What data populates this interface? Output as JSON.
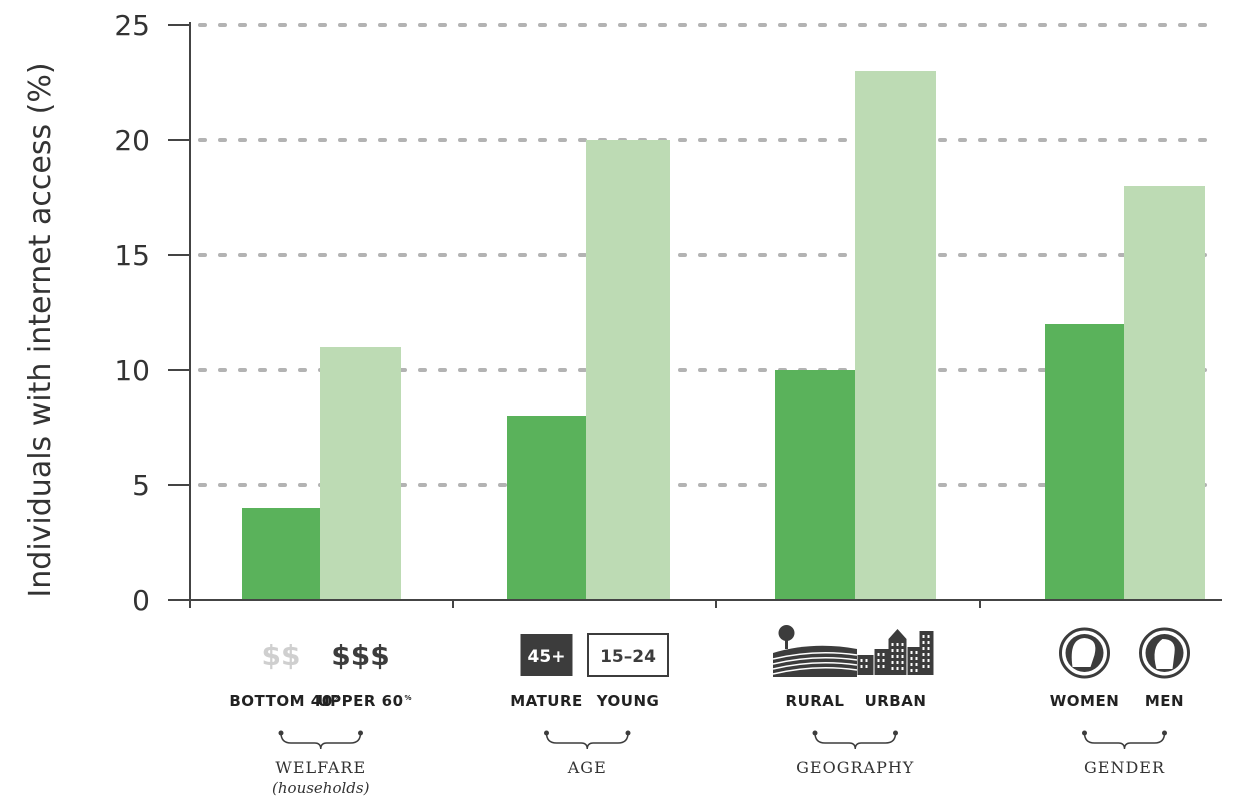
{
  "chart_data": {
    "type": "bar",
    "ylabel": "Individuals with internet access (%)",
    "ylim": [
      0,
      25
    ],
    "yticks": [
      0,
      5,
      10,
      15,
      20,
      25
    ],
    "grid": "horizontal-dotted",
    "colors": {
      "dark": "#5ab25b",
      "light": "#bddbb4",
      "axis": "#444444",
      "grid": "#b3b3b3"
    },
    "groups": [
      {
        "label": "WELFARE",
        "sublabel": "(households)",
        "bars": [
          {
            "label": "BOTTOM 40",
            "sup": "%",
            "icon": "single-dollar-icon",
            "icon_text": "$$",
            "value": 4,
            "shade": "dark"
          },
          {
            "label": "UPPER 60",
            "sup": "%",
            "icon": "triple-dollar-icon",
            "icon_text": "$$$",
            "value": 11,
            "shade": "light"
          }
        ]
      },
      {
        "label": "AGE",
        "bars": [
          {
            "label": "MATURE",
            "icon": "age-45-plus-icon",
            "icon_text": "45+",
            "value": 8,
            "shade": "dark"
          },
          {
            "label": "YOUNG",
            "icon": "age-15-24-icon",
            "icon_text": "15–24",
            "value": 20,
            "shade": "light"
          }
        ]
      },
      {
        "label": "GEOGRAPHY",
        "bars": [
          {
            "label": "RURAL",
            "icon": "rural-field-icon",
            "value": 10,
            "shade": "dark"
          },
          {
            "label": "URBAN",
            "icon": "city-buildings-icon",
            "value": 23,
            "shade": "light"
          }
        ]
      },
      {
        "label": "GENDER",
        "bars": [
          {
            "label": "WOMEN",
            "icon": "woman-head-icon",
            "value": 12,
            "shade": "dark"
          },
          {
            "label": "MEN",
            "icon": "man-head-icon",
            "value": 18,
            "shade": "light"
          }
        ]
      }
    ]
  }
}
